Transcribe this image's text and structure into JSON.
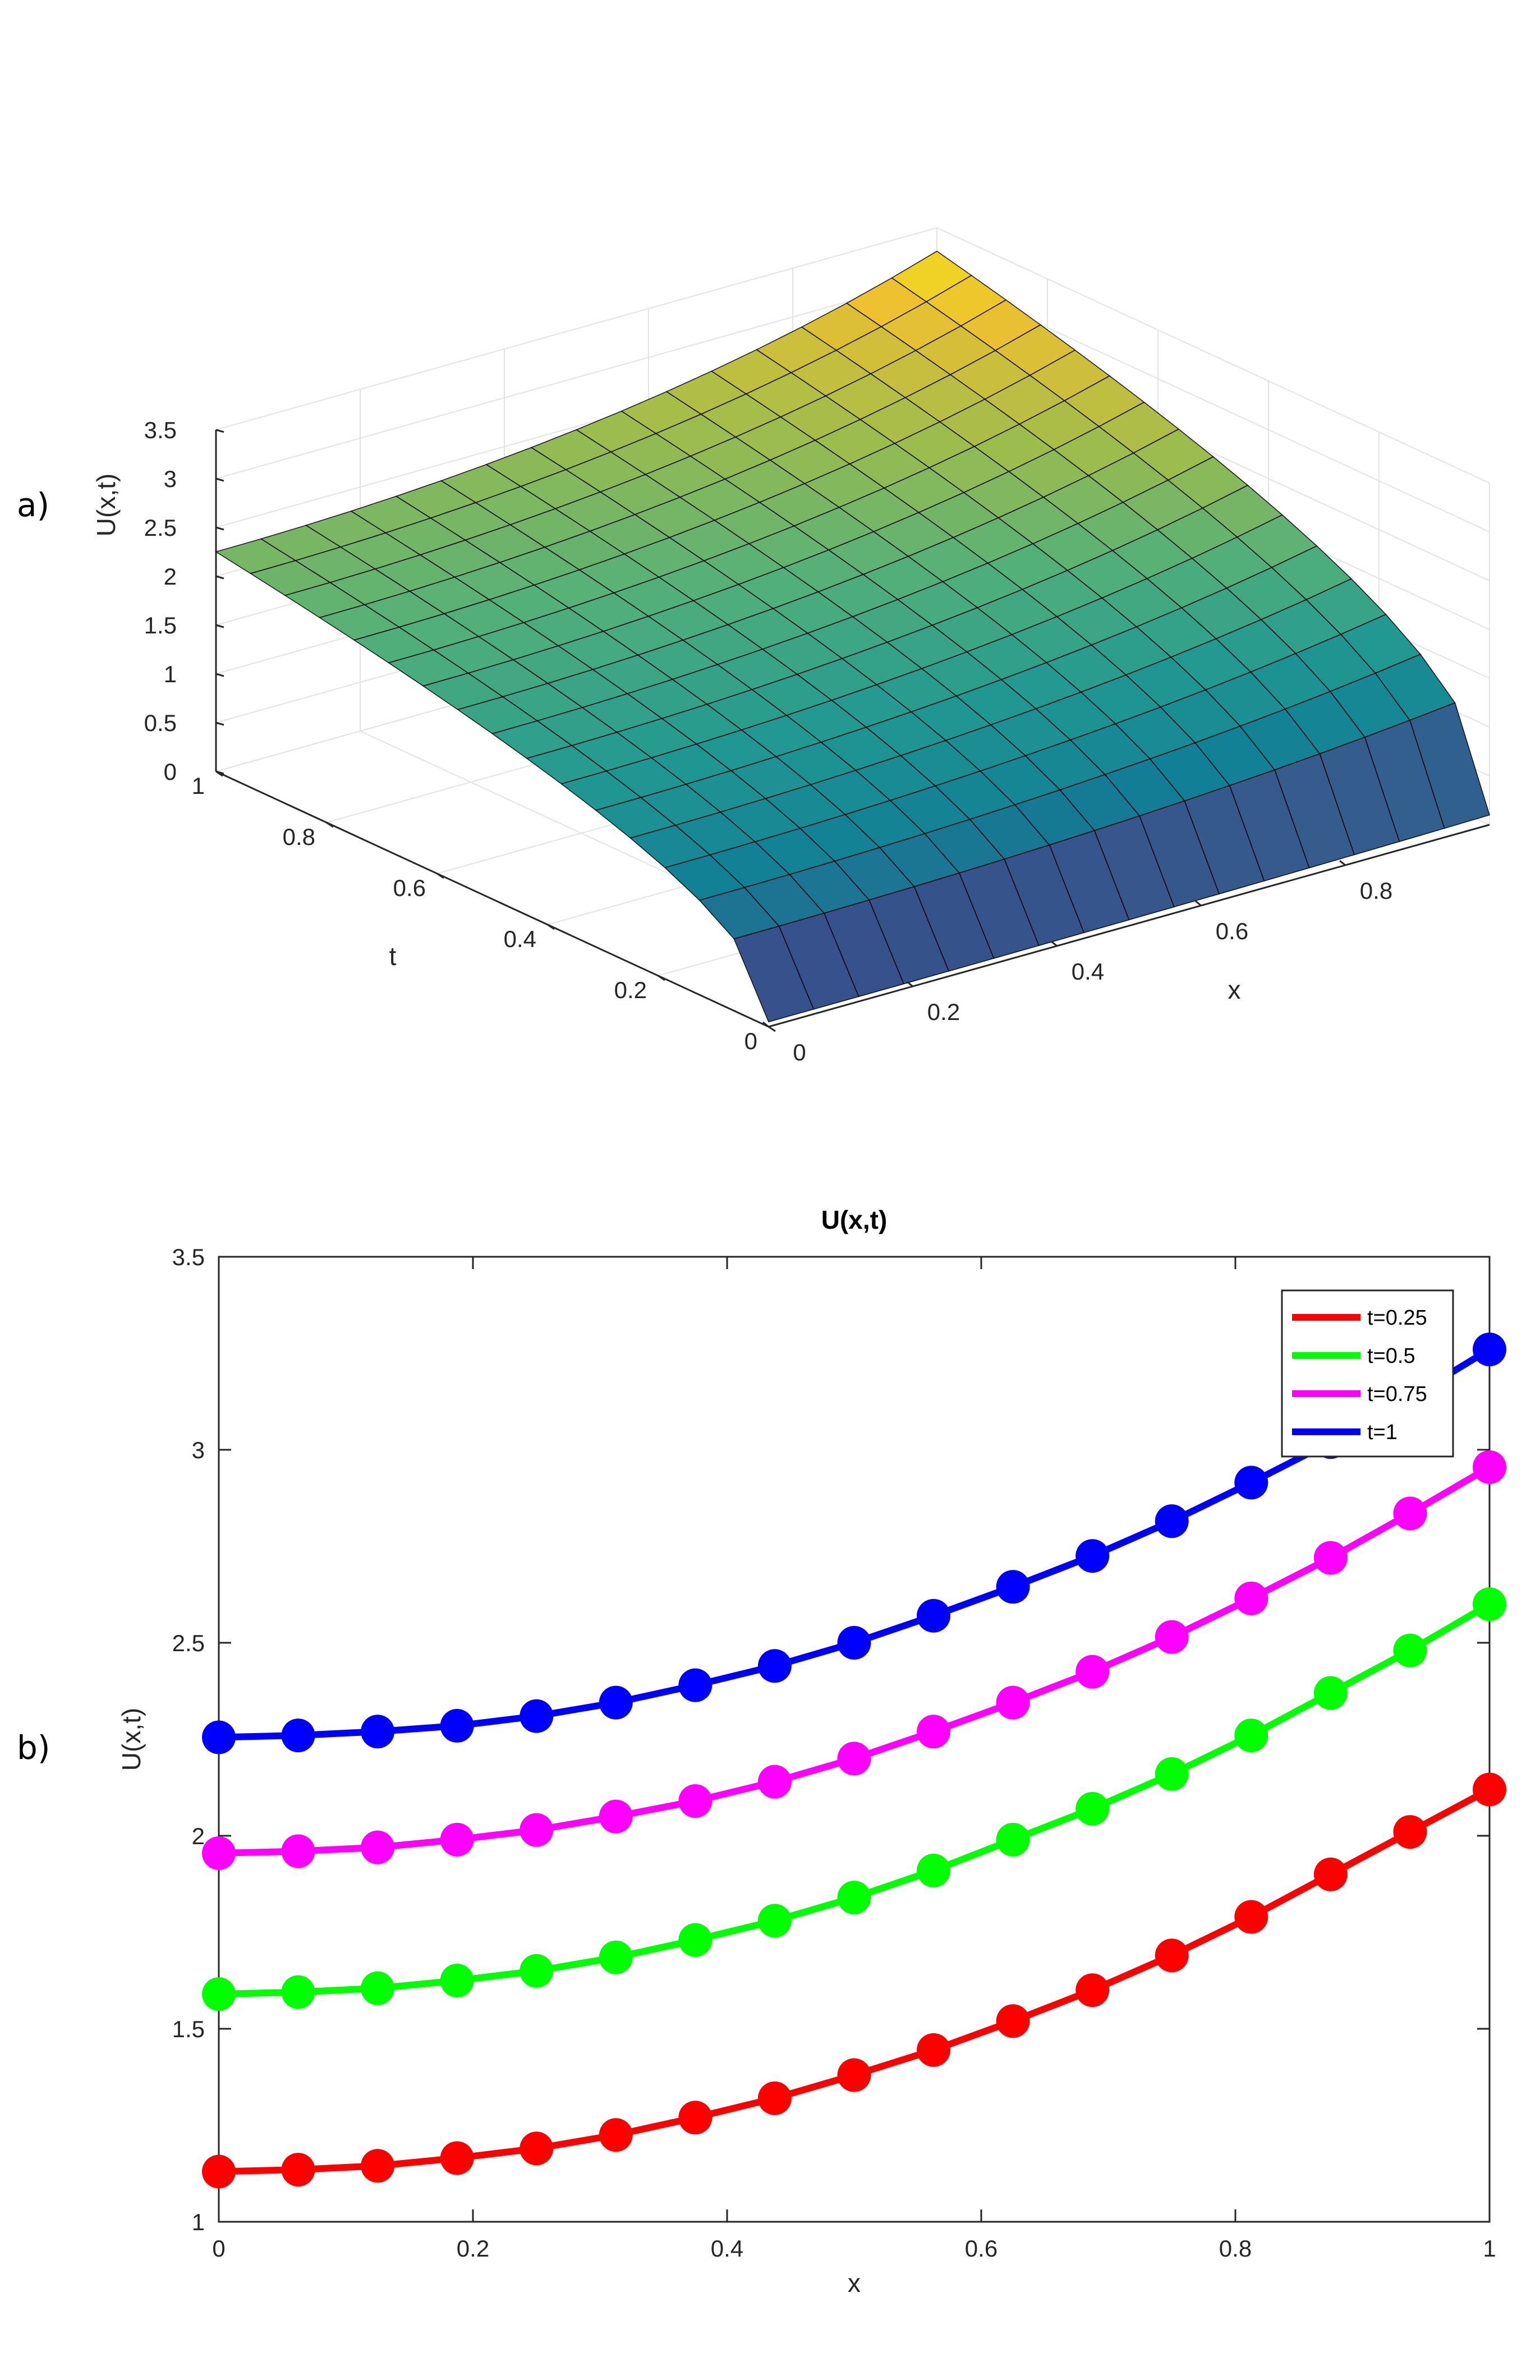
{
  "panels": {
    "a": "a)",
    "b": "b)"
  },
  "colors": {
    "t025": "#ff0000",
    "t05": "#00ff00",
    "t075": "#ff00ff",
    "t1": "#0000ff"
  },
  "chart_data": [
    {
      "type": "surface",
      "title": "",
      "xlabel": "x",
      "ylabel": "t",
      "zlabel": "U(x,t)",
      "xlim": [
        0,
        1
      ],
      "ylim": [
        0,
        1
      ],
      "zlim": [
        0,
        3.5
      ],
      "xticks": [
        "0",
        "0.2",
        "0.4",
        "0.6",
        "0.8"
      ],
      "yticks": [
        "0",
        "0.2",
        "0.4",
        "0.6",
        "0.8",
        "1"
      ],
      "zticks": [
        "0",
        "0.5",
        "1",
        "1.5",
        "2",
        "2.5",
        "3",
        "3.5"
      ],
      "grid": true,
      "colormap": "parula",
      "x": [
        0,
        0.0625,
        0.125,
        0.1875,
        0.25,
        0.3125,
        0.375,
        0.4375,
        0.5,
        0.5625,
        0.625,
        0.6875,
        0.75,
        0.8125,
        0.875,
        0.9375,
        1
      ],
      "t": [
        0,
        0.0625,
        0.125,
        0.1875,
        0.25,
        0.3125,
        0.375,
        0.4375,
        0.5,
        0.5625,
        0.625,
        0.6875,
        0.75,
        0.8125,
        0.875,
        0.9375,
        1
      ],
      "u0_at_t0": 0.05,
      "u0_at_t1": 2.25,
      "u1_at_t0": 0.1,
      "u1_at_t1": 3.26
    },
    {
      "type": "line",
      "title": "U(x,t)",
      "xlabel": "x",
      "ylabel": "U(x,t)",
      "xlim": [
        0,
        1
      ],
      "ylim": [
        1,
        3.5
      ],
      "xticks": [
        "0",
        "0.2",
        "0.4",
        "0.6",
        "0.8",
        "1"
      ],
      "yticks": [
        "1",
        "1.5",
        "2",
        "2.5",
        "3",
        "3.5"
      ],
      "legend_position": "top-right",
      "x": [
        0,
        0.0625,
        0.125,
        0.1875,
        0.25,
        0.3125,
        0.375,
        0.4375,
        0.5,
        0.5625,
        0.625,
        0.6875,
        0.75,
        0.8125,
        0.875,
        0.9375,
        1
      ],
      "series": [
        {
          "name": "t=0.25",
          "color": "#ff0000",
          "values": [
            1.13,
            1.135,
            1.145,
            1.165,
            1.19,
            1.225,
            1.27,
            1.32,
            1.38,
            1.445,
            1.52,
            1.6,
            1.69,
            1.79,
            1.9,
            2.01,
            2.12
          ]
        },
        {
          "name": "t=0.5",
          "color": "#00ff00",
          "values": [
            1.59,
            1.595,
            1.605,
            1.625,
            1.65,
            1.685,
            1.73,
            1.78,
            1.84,
            1.91,
            1.99,
            2.07,
            2.16,
            2.26,
            2.37,
            2.48,
            2.6
          ]
        },
        {
          "name": "t=0.75",
          "color": "#ff00ff",
          "values": [
            1.955,
            1.96,
            1.97,
            1.99,
            2.015,
            2.05,
            2.09,
            2.14,
            2.2,
            2.27,
            2.345,
            2.425,
            2.515,
            2.615,
            2.72,
            2.835,
            2.955
          ]
        },
        {
          "name": "t=1",
          "color": "#0000ff",
          "values": [
            2.255,
            2.26,
            2.27,
            2.285,
            2.31,
            2.345,
            2.39,
            2.44,
            2.5,
            2.57,
            2.645,
            2.725,
            2.815,
            2.915,
            3.02,
            3.135,
            3.26
          ]
        }
      ]
    }
  ]
}
